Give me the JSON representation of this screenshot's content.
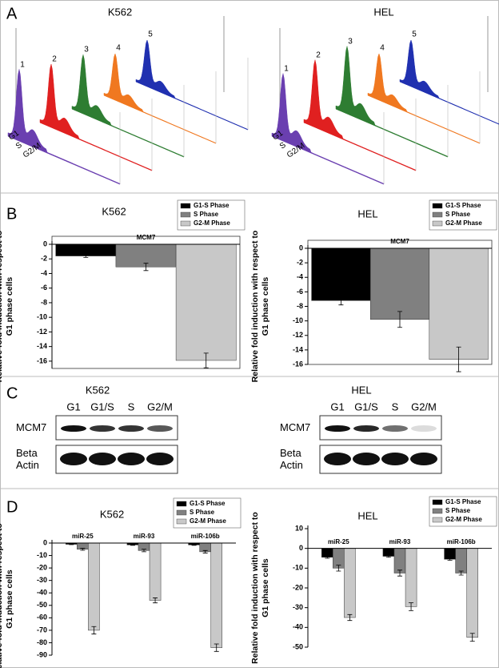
{
  "figure": {
    "A": {
      "label": "A",
      "plots": [
        {
          "title": "K562",
          "peaks": [
            "1",
            "2",
            "3",
            "4",
            "5"
          ],
          "axis": [
            "G1",
            "S",
            "G2/M"
          ]
        },
        {
          "title": "HEL",
          "peaks": [
            "1",
            "2",
            "3",
            "4",
            "5"
          ],
          "axis": [
            "G1",
            "S",
            "G2/M"
          ]
        }
      ]
    },
    "B": {
      "label": "B"
    },
    "C": {
      "label": "C",
      "blots": [
        {
          "title": "K562",
          "lanes": [
            "G1",
            "G1/S",
            "S",
            "G2/M"
          ],
          "rows": [
            "MCM7",
            "Beta Actin"
          ]
        },
        {
          "title": "HEL",
          "lanes": [
            "G1",
            "G1/S",
            "S",
            "G2/M"
          ],
          "rows": [
            "MCM7",
            "Beta Actin"
          ]
        }
      ]
    },
    "D": {
      "label": "D"
    }
  },
  "chart_data": [
    {
      "type": "bar",
      "title": "K562",
      "y_label": "Relative fold induction with respect to G1 phase cells",
      "categories": [
        "MCM7"
      ],
      "series": [
        {
          "name": "G1-S Phase",
          "color": "#000000",
          "values": [
            -1.6
          ],
          "errors": [
            0.2
          ]
        },
        {
          "name": "S Phase",
          "color": "#808080",
          "values": [
            -3.1
          ],
          "errors": [
            0.5
          ]
        },
        {
          "name": "G2-M Phase",
          "color": "#c8c8c8",
          "values": [
            -15.9
          ],
          "errors": [
            1.0
          ]
        }
      ],
      "ylim": [
        -17,
        0
      ],
      "yticks": [
        0,
        -2,
        -4,
        -6,
        -8,
        -10,
        -12,
        -14,
        -16
      ],
      "legend": "upper right",
      "frame": true
    },
    {
      "type": "bar",
      "title": "HEL",
      "y_label": "Relative fold induction with respect to G1 phase cells",
      "categories": [
        "MCM7"
      ],
      "series": [
        {
          "name": "G1-S Phase",
          "color": "#000000",
          "values": [
            -7.2
          ],
          "errors": [
            0.6
          ]
        },
        {
          "name": "S Phase",
          "color": "#808080",
          "values": [
            -9.8
          ],
          "errors": [
            1.1
          ]
        },
        {
          "name": "G2-M Phase",
          "color": "#c8c8c8",
          "values": [
            -15.3
          ],
          "errors": [
            1.7
          ]
        }
      ],
      "ylim": [
        -16,
        0
      ],
      "yticks": [
        0,
        -2,
        -4,
        -6,
        -8,
        -10,
        -12,
        -14,
        -16
      ],
      "legend": "upper right",
      "frame": true
    },
    {
      "type": "bar",
      "title": "K562",
      "y_label": "Relative fold induction with respect to G1 phase cells",
      "categories": [
        "miR-25",
        "miR-93",
        "miR-106b"
      ],
      "series": [
        {
          "name": "G1-S Phase",
          "color": "#000000",
          "values": [
            -1,
            -1.5,
            -1.5
          ],
          "errors": [
            0.3,
            0.3,
            0.3
          ]
        },
        {
          "name": "S Phase",
          "color": "#808080",
          "values": [
            -5,
            -6,
            -7
          ],
          "errors": [
            0.8,
            1,
            1
          ]
        },
        {
          "name": "G2-M Phase",
          "color": "#c8c8c8",
          "values": [
            -70,
            -46,
            -84
          ],
          "errors": [
            3,
            2,
            3
          ]
        }
      ],
      "ylim": [
        -90,
        0
      ],
      "yticks": [
        0,
        -10,
        -20,
        -30,
        -40,
        -50,
        -60,
        -70,
        -80,
        -90
      ],
      "legend": "upper right",
      "frame": false
    },
    {
      "type": "bar",
      "title": "HEL",
      "y_label": "Relative fold induction with respect to G1 phase cells",
      "categories": [
        "miR-25",
        "miR-93",
        "miR-106b"
      ],
      "series": [
        {
          "name": "G1-S Phase",
          "color": "#000000",
          "values": [
            -4.5,
            -4,
            -5.5
          ],
          "errors": [
            0.5,
            0.5,
            0.5
          ]
        },
        {
          "name": "S Phase",
          "color": "#808080",
          "values": [
            -10,
            -12.5,
            -12.5
          ],
          "errors": [
            1.5,
            1.5,
            1
          ]
        },
        {
          "name": "G2-M Phase",
          "color": "#c8c8c8",
          "values": [
            -35,
            -29.5,
            -45
          ],
          "errors": [
            1.5,
            2,
            2
          ]
        }
      ],
      "ylim": [
        -50,
        10
      ],
      "yticks": [
        10,
        0,
        -10,
        -20,
        -30,
        -40,
        -50
      ],
      "legend": "upper right",
      "frame": false
    }
  ]
}
